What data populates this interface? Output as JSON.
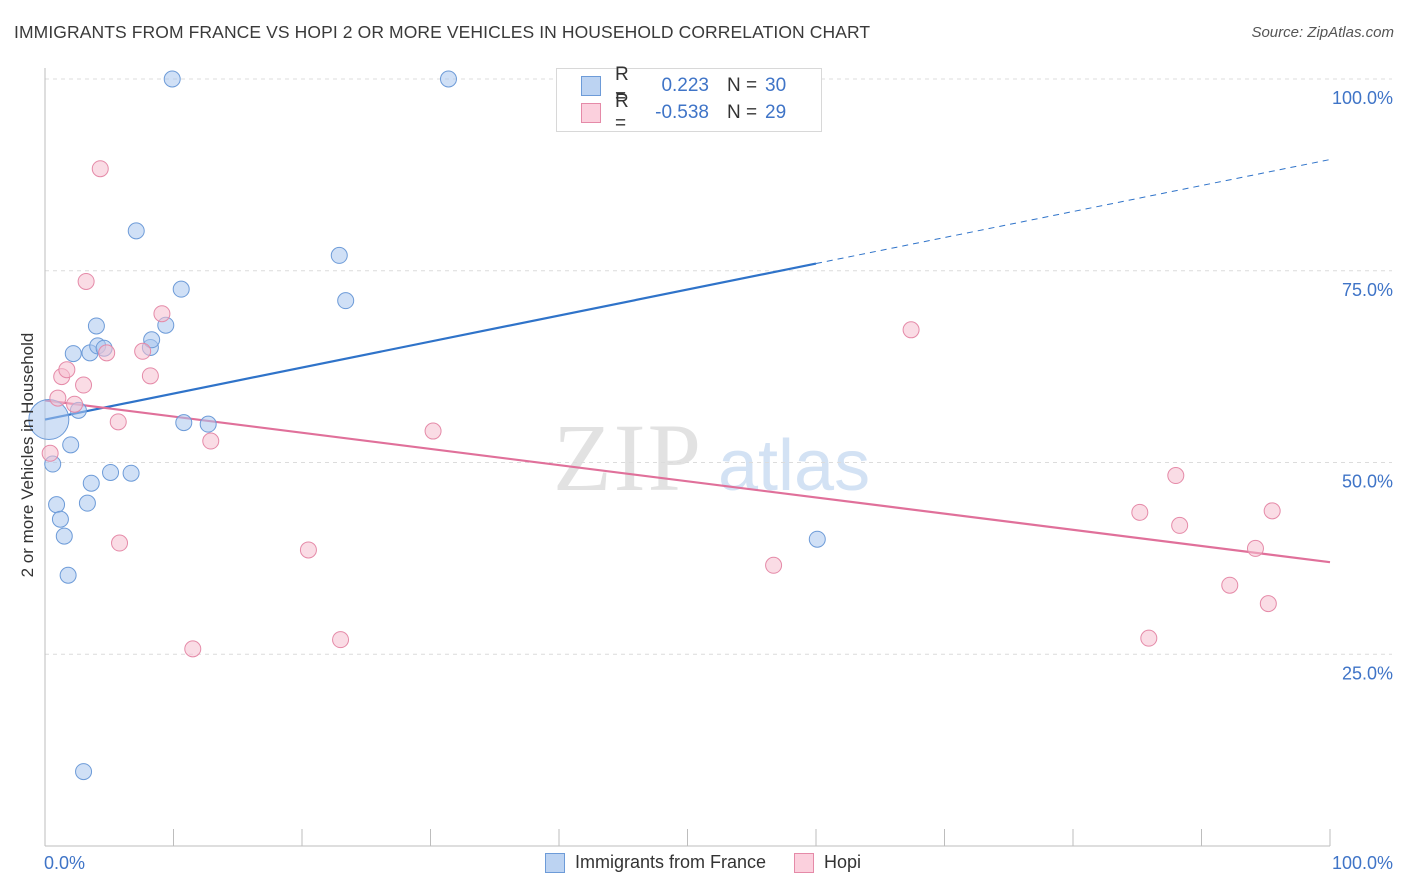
{
  "title": "IMMIGRANTS FROM FRANCE VS HOPI 2 OR MORE VEHICLES IN HOUSEHOLD CORRELATION CHART",
  "source": "Source: ZipAtlas.com",
  "watermark": {
    "zip": "ZIP",
    "atlas": "atlas"
  },
  "legend_top": [
    {
      "r_label": "R =",
      "r_value": "0.223",
      "n_label": "N =",
      "n_value": "30"
    },
    {
      "r_label": "R =",
      "r_value": "-0.538",
      "n_label": "N =",
      "n_value": "29"
    }
  ],
  "chart_data": {
    "type": "scatter",
    "title": "IMMIGRANTS FROM FRANCE VS HOPI 2 OR MORE VEHICLES IN HOUSEHOLD CORRELATION CHART",
    "xlabel": "",
    "ylabel": "2 or more Vehicles in Household",
    "xlim": [
      0,
      100
    ],
    "ylim": [
      0,
      100
    ],
    "x_tick_labels": [
      "0.0%",
      "100.0%"
    ],
    "y_tick_labels": [
      "100.0%",
      "75.0%",
      "50.0%",
      "25.0%"
    ],
    "y_ticks": [
      100,
      75,
      50,
      25
    ],
    "grid": "horizontal dashed",
    "legend_position": "bottom",
    "series": [
      {
        "name": "Immigrants from France",
        "color": "#a9c7ee",
        "edge": "#6d9bd8",
        "line_color": "#2f73c9",
        "trend": {
          "x0": 0,
          "y0": 55.6,
          "x_solid_end": 60,
          "x1": 100,
          "y1": 89.5
        },
        "points": [
          [
            0.3,
            55.6
          ],
          [
            0.6,
            49.8
          ],
          [
            0.9,
            44.5
          ],
          [
            1.2,
            42.6
          ],
          [
            1.5,
            40.4
          ],
          [
            1.8,
            35.3
          ],
          [
            2.0,
            52.3
          ],
          [
            2.2,
            64.2
          ],
          [
            2.6,
            56.8
          ],
          [
            3.0,
            9.7
          ],
          [
            3.3,
            44.7
          ],
          [
            3.5,
            64.3
          ],
          [
            3.6,
            47.3
          ],
          [
            4.0,
            67.8
          ],
          [
            4.1,
            65.2
          ],
          [
            4.6,
            64.9
          ],
          [
            5.1,
            48.7
          ],
          [
            6.7,
            48.6
          ],
          [
            7.1,
            80.2
          ],
          [
            8.2,
            65.0
          ],
          [
            8.3,
            66.0
          ],
          [
            9.4,
            67.9
          ],
          [
            10.6,
            72.6
          ],
          [
            10.8,
            55.2
          ],
          [
            12.7,
            55.0
          ],
          [
            22.9,
            77.0
          ],
          [
            23.4,
            71.1
          ],
          [
            9.9,
            100.0
          ],
          [
            31.4,
            100.0
          ],
          [
            60.1,
            40.0
          ]
        ]
      },
      {
        "name": "Hopi",
        "color": "#f6bfd0",
        "edge": "#e58aa8",
        "line_color": "#e0709a",
        "trend": {
          "x0": 0,
          "y0": 58.1,
          "x_solid_end": 100,
          "x1": 100,
          "y1": 37.0
        },
        "points": [
          [
            0.4,
            51.2
          ],
          [
            1.0,
            58.4
          ],
          [
            1.3,
            61.2
          ],
          [
            1.7,
            62.1
          ],
          [
            2.3,
            57.6
          ],
          [
            3.0,
            60.1
          ],
          [
            3.2,
            73.6
          ],
          [
            4.3,
            88.3
          ],
          [
            4.8,
            64.3
          ],
          [
            5.7,
            55.3
          ],
          [
            5.8,
            39.5
          ],
          [
            7.6,
            64.5
          ],
          [
            8.2,
            61.3
          ],
          [
            9.1,
            69.4
          ],
          [
            11.5,
            25.7
          ],
          [
            12.9,
            52.8
          ],
          [
            20.5,
            38.6
          ],
          [
            23.0,
            26.9
          ],
          [
            30.2,
            54.1
          ],
          [
            56.7,
            36.6
          ],
          [
            67.4,
            67.3
          ],
          [
            85.2,
            43.5
          ],
          [
            85.9,
            27.1
          ],
          [
            88.0,
            48.3
          ],
          [
            88.3,
            41.8
          ],
          [
            92.2,
            34.0
          ],
          [
            94.2,
            38.8
          ],
          [
            95.2,
            31.6
          ],
          [
            95.5,
            43.7
          ]
        ]
      }
    ]
  }
}
